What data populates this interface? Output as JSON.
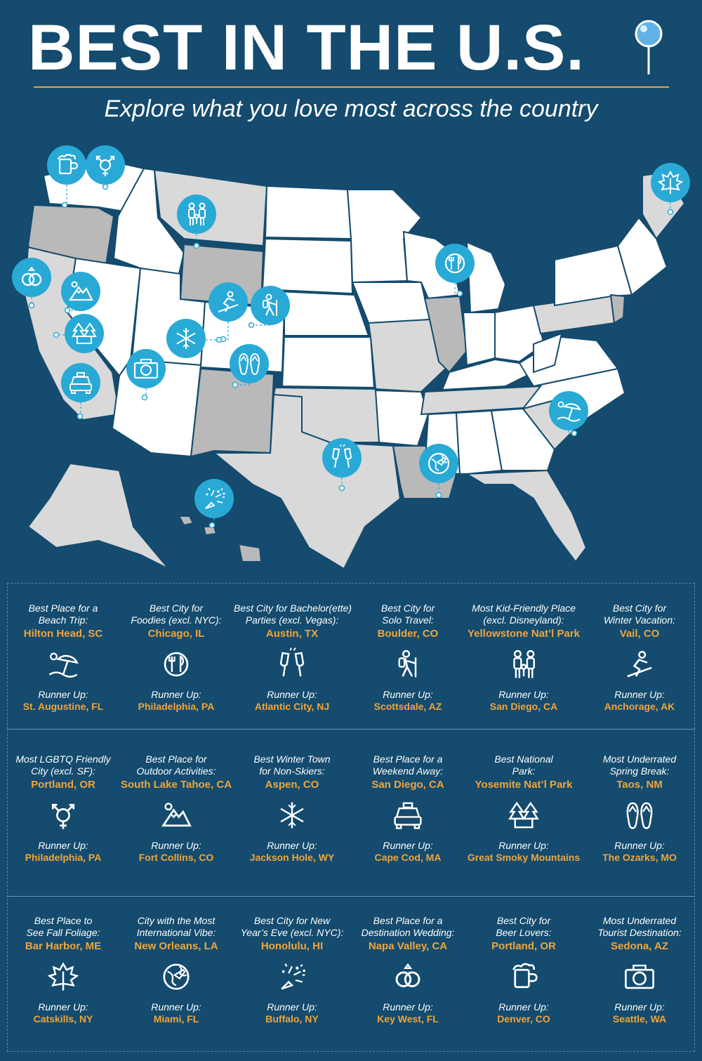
{
  "header": {
    "title": "BEST IN THE U.S.",
    "subtitle": "Explore what you love most across the country"
  },
  "colors": {
    "background": "#144b6e",
    "accent": "#f0a53a",
    "marker": "#29a9d6",
    "state_white": "#ffffff",
    "state_gray": "#b9b9b9"
  },
  "map_markers": [
    "beer-mug-icon",
    "gender-symbol-icon",
    "family-icon",
    "wedding-rings-icon",
    "mountain-snow-icon",
    "skier-icon",
    "hiker-icon",
    "trees-icon",
    "snowflake-icon",
    "flip-flops-icon",
    "taxi-icon",
    "camera-icon",
    "dining-icon",
    "maple-leaf-icon",
    "beach-umbrella-icon",
    "champagne-toast-icon",
    "globe-plane-icon",
    "fireworks-icon"
  ],
  "runner_up_label": "Runner Up:",
  "rows": [
    [
      {
        "category_line1": "Best Place for a",
        "category_line2": "Beach Trip:",
        "winner": "Hilton Head, SC",
        "icon": "beach-umbrella-icon",
        "runner_up": "St. Augustine, FL"
      },
      {
        "category_line1": "Best City for",
        "category_line2": "Foodies (excl. NYC):",
        "winner": "Chicago, IL",
        "icon": "dining-icon",
        "runner_up": "Philadelphia, PA"
      },
      {
        "category_line1": "Best City for Bachelor(ette)",
        "category_line2": "Parties (excl. Vegas):",
        "winner": "Austin, TX",
        "icon": "champagne-toast-icon",
        "runner_up": "Atlantic City, NJ"
      },
      {
        "category_line1": "Best City for",
        "category_line2": "Solo Travel:",
        "winner": "Boulder, CO",
        "icon": "hiker-icon",
        "runner_up": "Scottsdale, AZ"
      },
      {
        "category_line1": "Most Kid-Friendly Place",
        "category_line2": "(excl. Disneyland):",
        "winner": "Yellowstone Nat’l Park",
        "icon": "family-icon",
        "runner_up": "San Diego, CA"
      },
      {
        "category_line1": "Best City for",
        "category_line2": "Winter Vacation:",
        "winner": "Vail, CO",
        "icon": "skier-icon",
        "runner_up": "Anchorage, AK"
      }
    ],
    [
      {
        "category_line1": "Most LGBTQ Friendly",
        "category_line2": "City (excl. SF):",
        "winner": "Portland, OR",
        "icon": "gender-symbol-icon",
        "runner_up": "Philadelphia, PA"
      },
      {
        "category_line1": "Best Place for",
        "category_line2": "Outdoor Activities:",
        "winner": "South Lake Tahoe, CA",
        "icon": "mountain-snow-icon",
        "runner_up": "Fort Collins, CO"
      },
      {
        "category_line1": "Best Winter Town",
        "category_line2": "for Non-Skiers:",
        "winner": "Aspen, CO",
        "icon": "snowflake-icon",
        "runner_up": "Jackson Hole, WY"
      },
      {
        "category_line1": "Best Place for a",
        "category_line2": "Weekend Away:",
        "winner": "San Diego, CA",
        "icon": "taxi-icon",
        "runner_up": "Cape Cod, MA"
      },
      {
        "category_line1": "Best National",
        "category_line2": "Park:",
        "winner": "Yosemite Nat’l Park",
        "icon": "trees-icon",
        "runner_up": "Great Smoky Mountains"
      },
      {
        "category_line1": "Most Underrated",
        "category_line2": "Spring Break:",
        "winner": "Taos, NM",
        "icon": "flip-flops-icon",
        "runner_up": "The Ozarks, MO"
      }
    ],
    [
      {
        "category_line1": "Best Place to",
        "category_line2": "See Fall Foliage:",
        "winner": "Bar Harbor, ME",
        "icon": "maple-leaf-icon",
        "runner_up": "Catskills, NY"
      },
      {
        "category_line1": "City with the Most",
        "category_line2": "International Vibe:",
        "winner": "New Orleans, LA",
        "icon": "globe-plane-icon",
        "runner_up": "Miami, FL"
      },
      {
        "category_line1": "Best City for New",
        "category_line2": "Year’s Eve (excl. NYC):",
        "winner": "Honolulu, HI",
        "icon": "fireworks-icon",
        "runner_up": "Buffalo, NY"
      },
      {
        "category_line1": "Best Place for a",
        "category_line2": "Destination Wedding:",
        "winner": "Napa Valley, CA",
        "icon": "wedding-rings-icon",
        "runner_up": "Key West, FL"
      },
      {
        "category_line1": "Best City for",
        "category_line2": "Beer Lovers:",
        "winner": "Portland, OR",
        "icon": "beer-mug-icon",
        "runner_up": "Denver, CO"
      },
      {
        "category_line1": "Most Underrated",
        "category_line2": "Tourist Destination:",
        "winner": "Sedona, AZ",
        "icon": "camera-icon",
        "runner_up": "Seattle, WA"
      }
    ]
  ]
}
